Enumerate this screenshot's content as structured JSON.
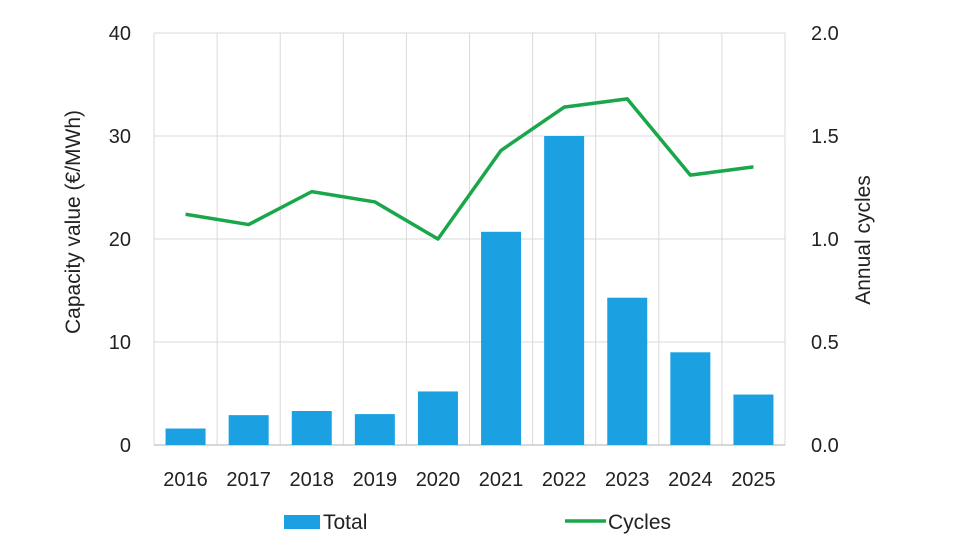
{
  "chart_data": {
    "type": "bar",
    "categories": [
      "2016",
      "2017",
      "2018",
      "2019",
      "2020",
      "2021",
      "2022",
      "2023",
      "2024",
      "2025"
    ],
    "series": [
      {
        "name": "Total",
        "type": "bar",
        "axis": "left",
        "color": "#1ba1e2",
        "values": [
          1.6,
          2.9,
          3.3,
          3.0,
          5.2,
          20.7,
          30.0,
          14.3,
          9.0,
          4.9
        ]
      },
      {
        "name": "Cycles",
        "type": "line",
        "axis": "right",
        "color": "#1aa64a",
        "values": [
          1.12,
          1.07,
          1.23,
          1.18,
          1.0,
          1.43,
          1.64,
          1.68,
          1.31,
          1.35
        ]
      }
    ],
    "ylabel": "Capacity value (€/MWh)",
    "ylabel_right": "Annual cycles",
    "ylim": [
      0,
      40
    ],
    "ylim_right": [
      0,
      2.0
    ],
    "yticks": [
      "0",
      "10",
      "20",
      "30",
      "40"
    ],
    "yticks_right": [
      "0.0",
      "0.5",
      "1.0",
      "1.5",
      "2.0"
    ],
    "grid": true,
    "legend": "bottom"
  }
}
